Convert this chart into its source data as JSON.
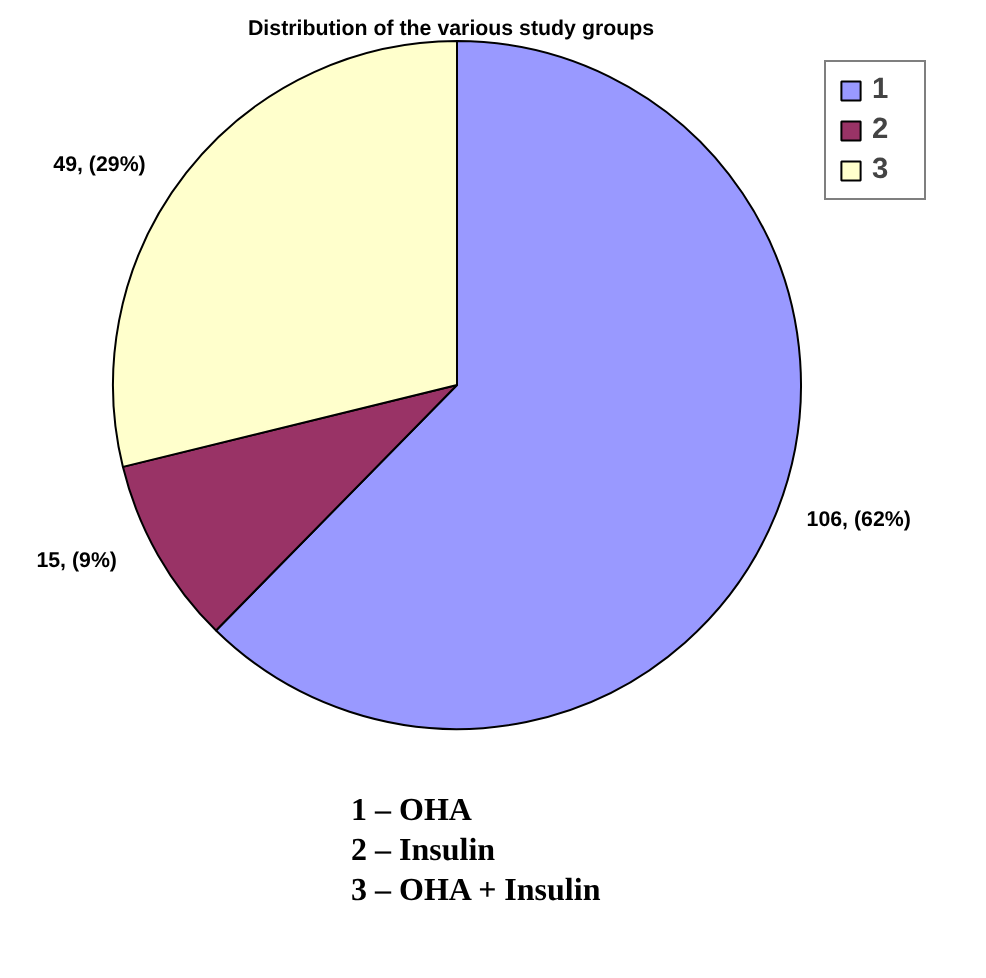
{
  "chart_data": {
    "type": "pie",
    "title": "Distribution  of the various study groups",
    "categories": [
      "1",
      "2",
      "3"
    ],
    "values": [
      106,
      15,
      49
    ],
    "colors": [
      "#9999ff",
      "#993366",
      "#ffffcc"
    ],
    "value_labels": [
      "106,  (62%)",
      "15, (9%)",
      "49, (29%)"
    ],
    "annotations": [
      "1 – OHA",
      "2 – Insulin",
      "3 – OHA + Insulin"
    ],
    "legend": "top right"
  }
}
